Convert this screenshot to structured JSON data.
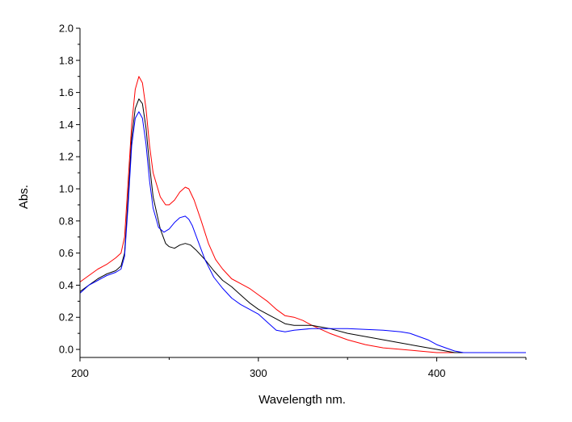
{
  "chart_data": {
    "type": "line",
    "title": "",
    "xlabel": "Wavelength nm.",
    "ylabel": "Abs.",
    "xlim": [
      200,
      450
    ],
    "ylim": [
      -0.05,
      2.0
    ],
    "x_ticks": [
      "200",
      "300",
      "400"
    ],
    "y_ticks": [
      "0.0",
      "0.2",
      "0.4",
      "0.6",
      "0.8",
      "1.0",
      "1.2",
      "1.4",
      "1.6",
      "1.8",
      "2.0"
    ],
    "grid": false,
    "legend": "none",
    "series": [
      {
        "color": "#ff0000",
        "x": [
          200,
          205,
          210,
          215,
          220,
          223,
          225,
          227,
          229,
          231,
          233,
          235,
          237,
          239,
          241,
          245,
          248,
          250,
          253,
          256,
          259,
          261,
          264,
          268,
          272,
          276,
          280,
          285,
          290,
          295,
          300,
          305,
          310,
          315,
          320,
          325,
          330,
          340,
          350,
          360,
          370,
          380,
          390,
          400,
          405,
          410,
          415,
          420,
          430,
          440,
          450
        ],
        "y": [
          0.42,
          0.46,
          0.5,
          0.53,
          0.57,
          0.6,
          0.7,
          1.05,
          1.4,
          1.62,
          1.7,
          1.66,
          1.5,
          1.27,
          1.1,
          0.95,
          0.9,
          0.9,
          0.93,
          0.98,
          1.01,
          1.0,
          0.93,
          0.8,
          0.66,
          0.56,
          0.5,
          0.44,
          0.41,
          0.38,
          0.34,
          0.3,
          0.25,
          0.21,
          0.2,
          0.18,
          0.15,
          0.1,
          0.06,
          0.03,
          0.01,
          0.0,
          -0.01,
          -0.02,
          -0.02,
          -0.02,
          -0.02,
          -0.02,
          -0.02,
          -0.02,
          -0.02
        ]
      },
      {
        "color": "#000000",
        "x": [
          200,
          205,
          210,
          215,
          220,
          223,
          225,
          227,
          229,
          231,
          233,
          235,
          237,
          239,
          241,
          245,
          248,
          250,
          253,
          256,
          259,
          262,
          265,
          270,
          275,
          280,
          285,
          290,
          295,
          300,
          305,
          310,
          315,
          320,
          330,
          340,
          350,
          360,
          370,
          380,
          390,
          400,
          405,
          410,
          415,
          420,
          430,
          440,
          450
        ],
        "y": [
          0.36,
          0.4,
          0.44,
          0.47,
          0.49,
          0.52,
          0.6,
          0.95,
          1.32,
          1.5,
          1.56,
          1.53,
          1.38,
          1.15,
          0.95,
          0.75,
          0.66,
          0.64,
          0.63,
          0.65,
          0.66,
          0.65,
          0.62,
          0.56,
          0.49,
          0.43,
          0.39,
          0.34,
          0.29,
          0.25,
          0.22,
          0.19,
          0.16,
          0.15,
          0.15,
          0.13,
          0.1,
          0.08,
          0.06,
          0.04,
          0.02,
          0.0,
          -0.01,
          -0.02,
          -0.02,
          -0.02,
          -0.02,
          -0.02,
          -0.02
        ]
      },
      {
        "color": "#0000ff",
        "x": [
          200,
          205,
          210,
          215,
          220,
          223,
          225,
          227,
          229,
          231,
          233,
          235,
          237,
          239,
          241,
          244,
          247,
          250,
          253,
          256,
          259,
          261,
          263,
          266,
          270,
          275,
          280,
          285,
          290,
          295,
          300,
          305,
          310,
          315,
          320,
          330,
          340,
          350,
          360,
          370,
          380,
          385,
          390,
          395,
          400,
          405,
          410,
          415,
          420,
          430,
          440,
          450
        ],
        "y": [
          0.35,
          0.4,
          0.43,
          0.46,
          0.48,
          0.5,
          0.58,
          0.9,
          1.27,
          1.44,
          1.48,
          1.44,
          1.28,
          1.05,
          0.88,
          0.76,
          0.73,
          0.75,
          0.79,
          0.82,
          0.83,
          0.81,
          0.77,
          0.68,
          0.56,
          0.45,
          0.38,
          0.32,
          0.28,
          0.25,
          0.22,
          0.17,
          0.12,
          0.11,
          0.12,
          0.13,
          0.13,
          0.13,
          0.125,
          0.12,
          0.11,
          0.1,
          0.08,
          0.06,
          0.03,
          0.01,
          -0.01,
          -0.02,
          -0.02,
          -0.02,
          -0.02,
          -0.02
        ]
      }
    ]
  }
}
